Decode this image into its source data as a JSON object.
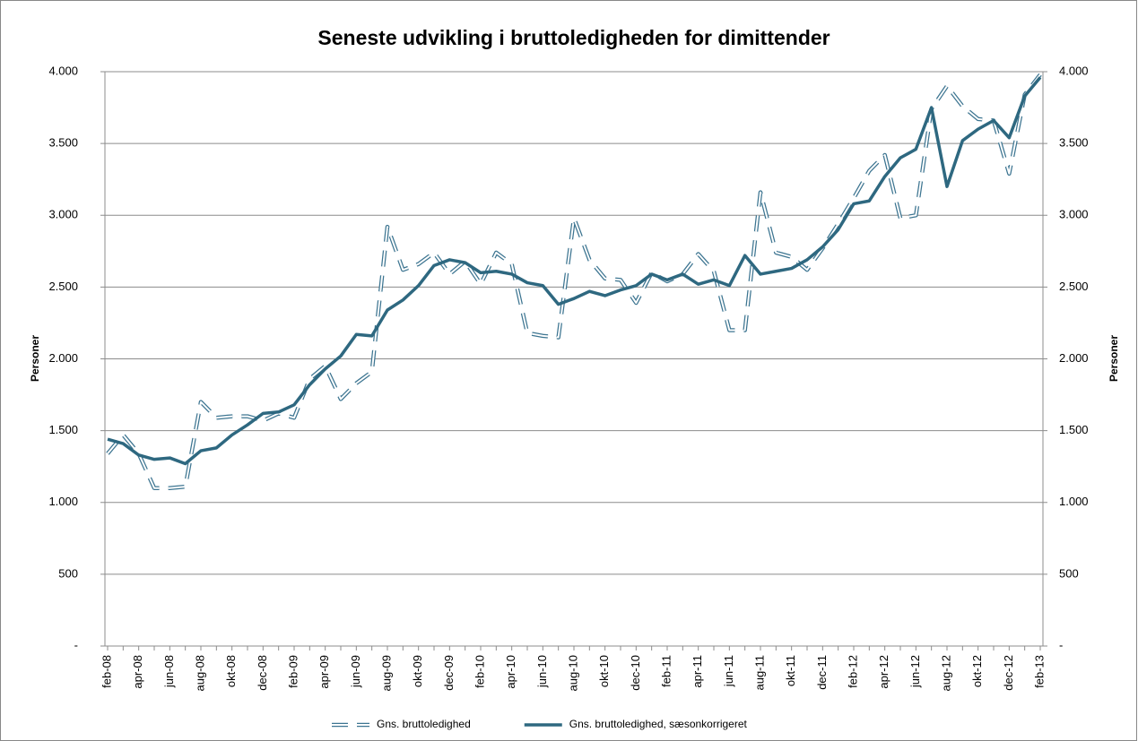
{
  "chart_data": {
    "type": "line",
    "title": "Seneste udvikling i bruttoledigheden for dimittender",
    "ylabel": "Personer",
    "y2label": "Personer",
    "categories": [
      "feb-08",
      null,
      "apr-08",
      null,
      "jun-08",
      null,
      "aug-08",
      null,
      "okt-08",
      null,
      "dec-08",
      null,
      "feb-09",
      null,
      "apr-09",
      null,
      "jun-09",
      null,
      "aug-09",
      null,
      "okt-09",
      null,
      "dec-09",
      null,
      "feb-10",
      null,
      "apr-10",
      null,
      "jun-10",
      null,
      "aug-10",
      null,
      "okt-10",
      null,
      "dec-10",
      null,
      "feb-11",
      null,
      "apr-11",
      null,
      "jun-11",
      null,
      "aug-11",
      null,
      "okt-11",
      null,
      "dec-11",
      null,
      "feb-12",
      null,
      "apr-12",
      null,
      "jun-12",
      null,
      "aug-12",
      null,
      "okt-12",
      null,
      "dec-12",
      null,
      "feb-13"
    ],
    "series": [
      {
        "name": "Gns. bruttoledighed",
        "color": "#3d7591",
        "style": "dashed",
        "values": [
          1340,
          1470,
          1340,
          1100,
          1100,
          1110,
          1700,
          1590,
          1600,
          1600,
          1570,
          1620,
          1590,
          1860,
          1950,
          1720,
          1830,
          1910,
          2920,
          2620,
          2660,
          2740,
          2590,
          2680,
          2520,
          2740,
          2660,
          2180,
          2160,
          2150,
          2980,
          2690,
          2560,
          2550,
          2390,
          2600,
          2540,
          2590,
          2730,
          2610,
          2200,
          2200,
          3160,
          2740,
          2710,
          2620,
          2770,
          2940,
          3120,
          3310,
          3420,
          2980,
          3000,
          3740,
          3900,
          3760,
          3670,
          3660,
          3290,
          3840,
          3980
        ]
      },
      {
        "name": "Gns. bruttoledighed, sæsonkorrigeret",
        "color": "#2e6880",
        "style": "solid",
        "values": [
          1440,
          1410,
          1330,
          1300,
          1310,
          1270,
          1360,
          1380,
          1470,
          1540,
          1620,
          1630,
          1680,
          1820,
          1930,
          2020,
          2170,
          2160,
          2340,
          2410,
          2510,
          2650,
          2690,
          2670,
          2600,
          2610,
          2590,
          2530,
          2510,
          2380,
          2420,
          2470,
          2440,
          2480,
          2510,
          2590,
          2550,
          2590,
          2520,
          2550,
          2510,
          2720,
          2590,
          2610,
          2630,
          2690,
          2780,
          2900,
          3080,
          3100,
          3270,
          3400,
          3460,
          3750,
          3200,
          3520,
          3600,
          3660,
          3540,
          3830,
          3960
        ]
      }
    ],
    "ylim": [
      0,
      4000
    ],
    "yticks": [
      {
        "value": 0,
        "label": "-"
      },
      500,
      {
        "value": 1000,
        "label": "1.000"
      },
      {
        "value": 1500,
        "label": "1.500"
      },
      {
        "value": 2000,
        "label": "2.000"
      },
      {
        "value": 2500,
        "label": "2.500"
      },
      {
        "value": 3000,
        "label": "3.000"
      },
      {
        "value": 3500,
        "label": "3.500"
      },
      {
        "value": 4000,
        "label": "4.000"
      }
    ],
    "y2lim": [
      0,
      4000
    ],
    "y2ticks": [
      {
        "value": 0,
        "label": "-"
      },
      500,
      {
        "value": 1000,
        "label": "1.000"
      },
      {
        "value": 1500,
        "label": "1.500"
      },
      {
        "value": 2000,
        "label": "2.000"
      },
      {
        "value": 2500,
        "label": "2.500"
      },
      {
        "value": 3000,
        "label": "3.000"
      },
      {
        "value": 3500,
        "label": "3.500"
      },
      {
        "value": 4000,
        "label": "4.000"
      }
    ],
    "grid": true,
    "legend": "bottom"
  }
}
